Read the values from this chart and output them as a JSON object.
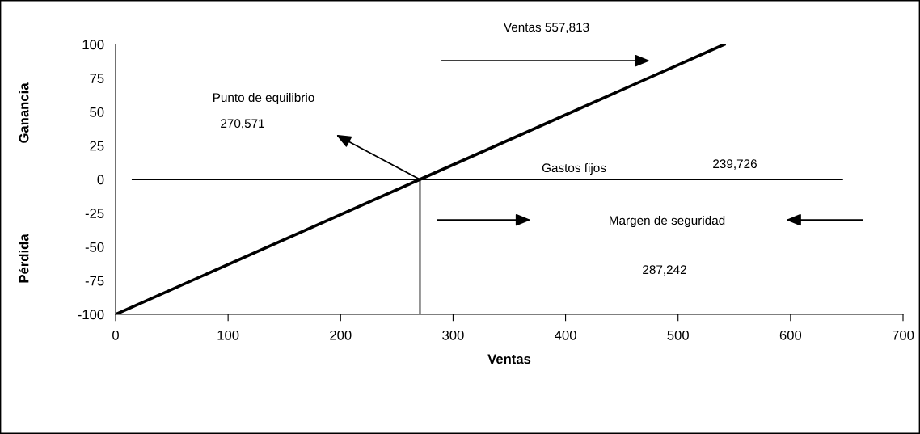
{
  "chart_data": {
    "type": "line",
    "xlabel": "Ventas",
    "ylabel": "Ganancia",
    "xlim": [
      0,
      700
    ],
    "xticks": [
      0,
      100,
      200,
      300,
      400,
      500,
      600,
      700
    ],
    "ylim": [
      -100,
      100
    ],
    "yticks": [
      -100,
      -75,
      -50,
      -25,
      0,
      25,
      50,
      75,
      100
    ],
    "grid": false,
    "marker": "none",
    "line_style": "solid",
    "series": [
      {
        "color": "#000000",
        "x": [
          0,
          270.571,
          541
        ],
        "values": [
          -100,
          0,
          100
        ]
      },
      {
        "color": "#000000",
        "x": [
          15,
          646
        ],
        "values": [
          0,
          0
        ]
      },
      {
        "color": "#000000",
        "x": [
          270.571,
          270.571
        ],
        "values": [
          -100,
          0
        ]
      }
    ],
    "annotations": [
      "Pérdida",
      "Ventas 557,813",
      "Punto de equilibrio",
      "270,571",
      "Gastos fijos",
      "239,726",
      "Margen de seguridad",
      "287,242"
    ]
  }
}
